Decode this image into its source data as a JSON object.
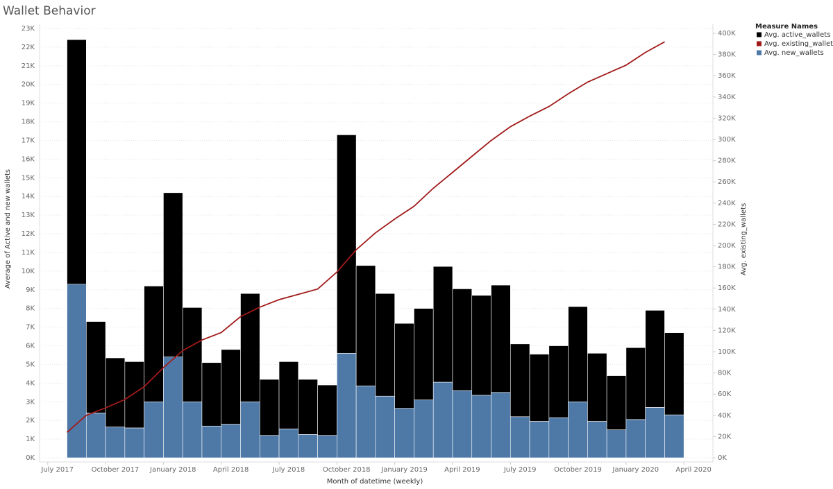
{
  "chart_data": {
    "type": "bar",
    "title": "Wallet Behavior",
    "x_label": "Month of datetime (weekly)",
    "y_label": "Average of Active and new wallets",
    "y2_label": "Avg. existing_wallets",
    "legend_title": "Measure Names",
    "legend_position": "right",
    "grid": true,
    "x": [
      "2017-08",
      "2017-09",
      "2017-10",
      "2017-11",
      "2017-12",
      "2018-01",
      "2018-02",
      "2018-03",
      "2018-04",
      "2018-05",
      "2018-06",
      "2018-07",
      "2018-08",
      "2018-09",
      "2018-10",
      "2018-11",
      "2018-12",
      "2019-01",
      "2019-02",
      "2019-03",
      "2019-04",
      "2019-05",
      "2019-06",
      "2019-07",
      "2019-08",
      "2019-09",
      "2019-10",
      "2019-11",
      "2019-12",
      "2020-01",
      "2020-02",
      "2020-03"
    ],
    "xlim": [
      "2017-06",
      "2020-05"
    ],
    "xticks": [
      {
        "value": "2017-07",
        "label": "July 2017"
      },
      {
        "value": "2017-10",
        "label": "October 2017"
      },
      {
        "value": "2018-01",
        "label": "January 2018"
      },
      {
        "value": "2018-04",
        "label": "April 2018"
      },
      {
        "value": "2018-07",
        "label": "July 2018"
      },
      {
        "value": "2018-10",
        "label": "October 2018"
      },
      {
        "value": "2019-01",
        "label": "January 2019"
      },
      {
        "value": "2019-04",
        "label": "April 2019"
      },
      {
        "value": "2019-07",
        "label": "July 2019"
      },
      {
        "value": "2019-10",
        "label": "October 2019"
      },
      {
        "value": "2020-01",
        "label": "January 2020"
      },
      {
        "value": "2020-04",
        "label": "April 2020"
      }
    ],
    "ylim": [
      0,
      23000
    ],
    "yticks": [
      {
        "value": 0,
        "label": "0K"
      },
      {
        "value": 1000,
        "label": "1K"
      },
      {
        "value": 2000,
        "label": "2K"
      },
      {
        "value": 3000,
        "label": "3K"
      },
      {
        "value": 4000,
        "label": "4K"
      },
      {
        "value": 5000,
        "label": "5K"
      },
      {
        "value": 6000,
        "label": "6K"
      },
      {
        "value": 7000,
        "label": "7K"
      },
      {
        "value": 8000,
        "label": "8K"
      },
      {
        "value": 9000,
        "label": "9K"
      },
      {
        "value": 10000,
        "label": "10K"
      },
      {
        "value": 11000,
        "label": "11K"
      },
      {
        "value": 12000,
        "label": "12K"
      },
      {
        "value": 13000,
        "label": "13K"
      },
      {
        "value": 14000,
        "label": "14K"
      },
      {
        "value": 15000,
        "label": "15K"
      },
      {
        "value": 16000,
        "label": "16K"
      },
      {
        "value": 17000,
        "label": "17K"
      },
      {
        "value": 18000,
        "label": "18K"
      },
      {
        "value": 19000,
        "label": "19K"
      },
      {
        "value": 20000,
        "label": "20K"
      },
      {
        "value": 21000,
        "label": "21K"
      },
      {
        "value": 22000,
        "label": "22K"
      },
      {
        "value": 23000,
        "label": "23K"
      }
    ],
    "y2lim": [
      0,
      404600
    ],
    "y2ticks": [
      {
        "value": 0,
        "label": "0K"
      },
      {
        "value": 20000,
        "label": "20K"
      },
      {
        "value": 40000,
        "label": "40K"
      },
      {
        "value": 60000,
        "label": "60K"
      },
      {
        "value": 80000,
        "label": "80K"
      },
      {
        "value": 100000,
        "label": "100K"
      },
      {
        "value": 120000,
        "label": "120K"
      },
      {
        "value": 140000,
        "label": "140K"
      },
      {
        "value": 160000,
        "label": "160K"
      },
      {
        "value": 180000,
        "label": "180K"
      },
      {
        "value": 200000,
        "label": "200K"
      },
      {
        "value": 220000,
        "label": "220K"
      },
      {
        "value": 240000,
        "label": "240K"
      },
      {
        "value": 260000,
        "label": "260K"
      },
      {
        "value": 280000,
        "label": "280K"
      },
      {
        "value": 300000,
        "label": "300K"
      },
      {
        "value": 320000,
        "label": "320K"
      },
      {
        "value": 340000,
        "label": "340K"
      },
      {
        "value": 360000,
        "label": "360K"
      },
      {
        "value": 380000,
        "label": "380K"
      },
      {
        "value": 400000,
        "label": "400K"
      }
    ],
    "series": [
      {
        "name": "Avg. active_wallets",
        "color": "#000000",
        "type": "bar",
        "values": [
          13100,
          4900,
          3700,
          3550,
          6200,
          8800,
          5050,
          3400,
          4000,
          5800,
          3000,
          3600,
          2950,
          2700,
          11700,
          6450,
          5500,
          4550,
          4900,
          6200,
          5450,
          5350,
          5750,
          3900,
          3600,
          3850,
          5100,
          3650,
          2900,
          3850,
          5200,
          4400
        ]
      },
      {
        "name": "Avg. existing_wallets",
        "color": "#a11a1a",
        "type": "line",
        "axis": "y2",
        "values": [
          24000,
          40000,
          47000,
          55000,
          67000,
          85000,
          101000,
          111000,
          118000,
          133000,
          142000,
          149000,
          154000,
          159000,
          175000,
          196000,
          212000,
          225000,
          237000,
          254000,
          269000,
          284000,
          299000,
          312000,
          322000,
          331000,
          343000,
          354000,
          362000,
          370000,
          382000,
          392000
        ]
      },
      {
        "name": "Avg. new_wallets",
        "color": "#4e79a7",
        "type": "bar",
        "values": [
          9300,
          2400,
          1650,
          1600,
          3000,
          5400,
          3000,
          1700,
          1800,
          3000,
          1200,
          1550,
          1250,
          1200,
          5600,
          3850,
          3300,
          2650,
          3100,
          4050,
          3600,
          3350,
          3500,
          2200,
          1950,
          2150,
          3000,
          1950,
          1500,
          2050,
          2700,
          2300
        ]
      }
    ]
  }
}
